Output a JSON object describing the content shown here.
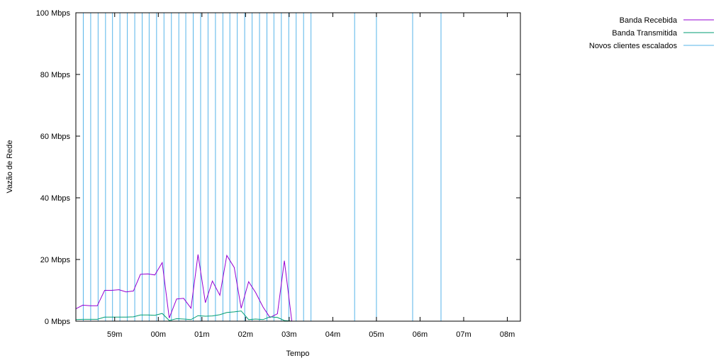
{
  "chart_data": {
    "type": "line",
    "title": "",
    "xlabel": "Tempo",
    "ylabel": "Vazão de Rede",
    "ylim": [
      0,
      100
    ],
    "xlim": [
      -1.89,
      8.3
    ],
    "grid": false,
    "legend_position": "top-right",
    "y_ticks": [
      {
        "value": 0,
        "label": "0 Mbps"
      },
      {
        "value": 20,
        "label": "20 Mbps"
      },
      {
        "value": 40,
        "label": "40 Mbps"
      },
      {
        "value": 60,
        "label": "60 Mbps"
      },
      {
        "value": 80,
        "label": "80 Mbps"
      },
      {
        "value": 100,
        "label": "100 Mbps"
      }
    ],
    "x_ticks": [
      {
        "value": -1,
        "label": "59m"
      },
      {
        "value": 0,
        "label": "00m"
      },
      {
        "value": 1,
        "label": "01m"
      },
      {
        "value": 2,
        "label": "02m"
      },
      {
        "value": 3,
        "label": "03m"
      },
      {
        "value": 4,
        "label": "04m"
      },
      {
        "value": 5,
        "label": "05m"
      },
      {
        "value": 6,
        "label": "06m"
      },
      {
        "value": 7,
        "label": "07m"
      },
      {
        "value": 8,
        "label": "08m"
      }
    ],
    "series": [
      {
        "name": "Banda Recebida",
        "color": "#9400d3",
        "x": [
          -1.89,
          -1.73,
          -1.56,
          -1.4,
          -1.23,
          -1.07,
          -0.9,
          -0.74,
          -0.57,
          -0.41,
          -0.24,
          -0.08,
          0.09,
          0.25,
          0.42,
          0.58,
          0.75,
          0.91,
          1.08,
          1.24,
          1.41,
          1.57,
          1.74,
          1.9,
          2.07,
          2.23,
          2.4,
          2.56,
          2.73,
          2.89,
          3.06,
          3.22,
          3.39
        ],
        "values": [
          4,
          5.2,
          5,
          5,
          10,
          10,
          10.2,
          9.5,
          9.8,
          15.2,
          15.3,
          15,
          19,
          1,
          7.2,
          7.4,
          4.2,
          21.6,
          6,
          13,
          8.4,
          21.3,
          17.4,
          4.2,
          12.8,
          9.3,
          4.6,
          1.2,
          2.4,
          19.6,
          0,
          0,
          0
        ]
      },
      {
        "name": "Banda Transmitida",
        "color": "#009e73",
        "x": [
          -1.89,
          -1.73,
          -1.56,
          -1.4,
          -1.23,
          -1.07,
          -0.9,
          -0.74,
          -0.57,
          -0.41,
          -0.24,
          -0.08,
          0.09,
          0.25,
          0.42,
          0.58,
          0.75,
          0.91,
          1.08,
          1.24,
          1.41,
          1.57,
          1.74,
          1.9,
          2.07,
          2.23,
          2.4,
          2.56,
          2.73,
          2.89,
          3.06,
          3.22,
          3.39
        ],
        "values": [
          0.5,
          0.6,
          0.6,
          0.6,
          1.3,
          1.3,
          1.3,
          1.3,
          1.4,
          2,
          2,
          1.9,
          2.5,
          0.2,
          0.8,
          0.7,
          0.5,
          1.8,
          1.6,
          1.7,
          2.1,
          2.8,
          3,
          3.3,
          0.5,
          0.7,
          0.5,
          1.4,
          1.2,
          0.2,
          0,
          0,
          0
        ]
      },
      {
        "name": "Novos clientes escalados",
        "color": "#56b4e9",
        "type": "vertical-lines",
        "x": [
          -1.72,
          -1.55,
          -1.38,
          -1.21,
          -1.05,
          -0.88,
          -0.71,
          -0.54,
          -0.37,
          -0.21,
          -0.04,
          0.13,
          0.3,
          0.47,
          0.63,
          0.8,
          0.97,
          1.14,
          1.31,
          1.48,
          1.64,
          1.81,
          1.98,
          2.15,
          2.32,
          2.49,
          2.65,
          2.82,
          2.99,
          3.16,
          3.33,
          3.5,
          4.5,
          5,
          5.83,
          6.48,
          8.3
        ]
      }
    ]
  }
}
